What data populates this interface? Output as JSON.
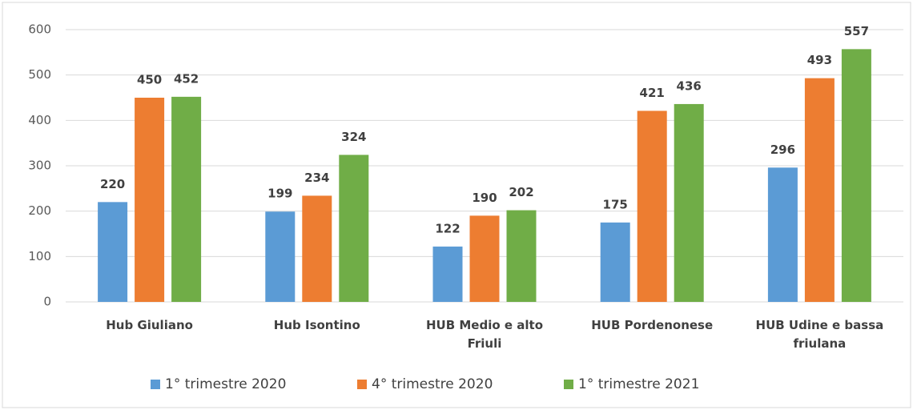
{
  "chart_data": {
    "type": "bar",
    "categories": [
      "Hub Giuliano",
      "Hub Isontino",
      "HUB Medio e alto Friuli",
      "HUB Pordenonese",
      "HUB Udine e bassa friulana"
    ],
    "series": [
      {
        "name": "1° trimestre 2020",
        "color": "#5b9bd5",
        "values": [
          220,
          199,
          122,
          175,
          296
        ]
      },
      {
        "name": "4° trimestre 2020",
        "color": "#ed7d31",
        "values": [
          450,
          234,
          190,
          421,
          493
        ]
      },
      {
        "name": "1° trimestre 2021",
        "color": "#70ad47",
        "values": [
          452,
          324,
          202,
          436,
          557
        ]
      }
    ],
    "ylim": [
      0,
      600
    ],
    "yticks": [
      0,
      100,
      200,
      300,
      400,
      500,
      600
    ],
    "grid": true,
    "legend": "bottom"
  }
}
